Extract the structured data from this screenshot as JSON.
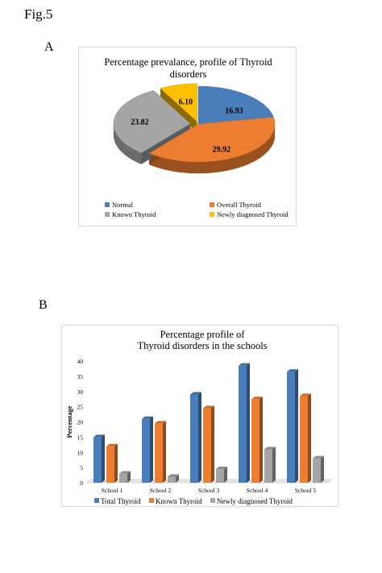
{
  "figure": {
    "label": "Fig.5"
  },
  "panels": {
    "a_label": "A",
    "b_label": "B"
  },
  "colors": {
    "blue": "#4a7ebb",
    "orange": "#ed7d31",
    "gray": "#a5a5a5",
    "yellow": "#ffc000"
  },
  "chart_data": [
    {
      "type": "pie",
      "title": "Percentage prevalance, profile of Thyroid disorders",
      "title_lines": [
        "Percentage prevalance, profile of Thyroid",
        "disorders"
      ],
      "slices": [
        {
          "name": "Normal",
          "value": 16.93,
          "label": "16.93",
          "color": "#4a7ebb"
        },
        {
          "name": "Overall Thyroid",
          "value": 29.92,
          "label": "29.92",
          "color": "#ed7d31"
        },
        {
          "name": "Known Thyroid",
          "value": 23.82,
          "label": "23.82",
          "color": "#a5a5a5"
        },
        {
          "name": "Newly diagnosed Thyroid",
          "value": 6.1,
          "label": "6.10",
          "color": "#ffc000"
        }
      ],
      "legend": [
        "Normal",
        "Overall Thyroid",
        "Known Thyroid",
        "Newly diagnosed Thyroid"
      ],
      "legend_placement": "bottom"
    },
    {
      "type": "bar",
      "title": "Percentage profile of Thyroid disorders in the schools",
      "title_lines": [
        "Percentage  profile  of",
        "Thyroid disorders in the schools"
      ],
      "categories": [
        "School 1",
        "School 2",
        "School 3",
        "School 4",
        "School 5"
      ],
      "series": [
        {
          "name": "Total Thyroid",
          "values": [
            15,
            21,
            29,
            38.5,
            36.5
          ],
          "color": "#4a7ebb"
        },
        {
          "name": "Known Thyroid",
          "values": [
            12,
            19.5,
            24.5,
            27.5,
            28.5
          ],
          "color": "#ed7d31"
        },
        {
          "name": "Newly diagnosed Thyroid",
          "values": [
            3,
            2,
            4.5,
            11,
            8
          ],
          "color": "#a5a5a5"
        }
      ],
      "ylabel": "Percentage",
      "xlabel": "",
      "ylim": [
        0,
        40
      ],
      "yticks": [
        0,
        5,
        10,
        15,
        20,
        25,
        30,
        35,
        40
      ],
      "grid": false,
      "legend_placement": "bottom"
    }
  ]
}
